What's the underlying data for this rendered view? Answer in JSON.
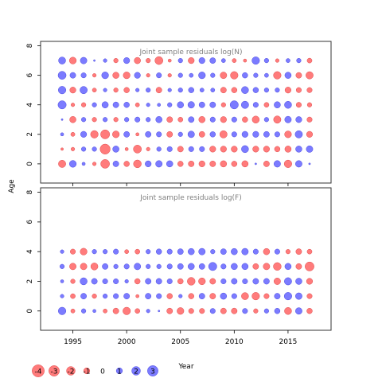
{
  "figure": {
    "ylabel": "Age",
    "xlabel": "Year",
    "colors": {
      "positive": "#6464ff",
      "negative": "#ff6464",
      "positive_stroke": "#4a4ae0",
      "negative_stroke": "#e04a4a"
    }
  },
  "legend": {
    "values": [
      -4,
      -3,
      -2,
      -1,
      0,
      1,
      2,
      3
    ],
    "labels": [
      "-4",
      "-3",
      "-2",
      "-1",
      "0",
      "1",
      "2",
      "3"
    ]
  },
  "chart_data": [
    {
      "type": "scatter",
      "encoding": "bubble",
      "title": "Joint sample residuals log(N)",
      "xlim": [
        1992,
        2019
      ],
      "ylim": [
        -1.3,
        8.3
      ],
      "xticks": [
        1995,
        2000,
        2005,
        2010,
        2015
      ],
      "xtick_labels": [
        "",
        "",
        "",
        "",
        ""
      ],
      "yticks": [
        0,
        2,
        4,
        6,
        8
      ],
      "ytick_labels": [
        "0",
        "2",
        "4",
        "6",
        "8"
      ],
      "years": [
        1994,
        1995,
        1996,
        1997,
        1998,
        1999,
        2000,
        2001,
        2002,
        2003,
        2004,
        2005,
        2006,
        2007,
        2008,
        2009,
        2010,
        2011,
        2012,
        2013,
        2014,
        2015,
        2016,
        2017
      ],
      "ages": [
        0,
        1,
        2,
        3,
        4,
        5,
        6,
        7
      ],
      "residuals": [
        [
          -1.6,
          1.4,
          0.3,
          -0.4,
          -2.3,
          1.0,
          -0.9,
          -1.8,
          1.1,
          1.3,
          1.2,
          -0.9,
          -1.0,
          -1.1,
          -1.0,
          -1.2,
          -0.9,
          -1.2,
          0.1,
          -1.0,
          1.3,
          -1.7,
          1.3,
          0.1
        ],
        [
          -0.2,
          -0.4,
          0.6,
          0.6,
          -3.0,
          1.2,
          -0.3,
          -1.9,
          -0.4,
          0.6,
          0.8,
          -1.0,
          0.8,
          0.8,
          -1.1,
          -1.1,
          -1.1,
          1.5,
          -1.1,
          -1.1,
          -0.9,
          -1.2,
          1.2,
          1.3
        ],
        [
          0.3,
          -0.5,
          1.1,
          -1.7,
          -2.4,
          -1.4,
          1.0,
          -0.3,
          1.0,
          0.8,
          -1.0,
          0.6,
          1.3,
          -1.0,
          0.9,
          -1.6,
          0.8,
          1.1,
          1.1,
          1.0,
          0.8,
          -1.4,
          1.6,
          -1.1
        ],
        [
          0.1,
          -1.2,
          0.6,
          -0.6,
          0.6,
          -0.6,
          0.6,
          0.8,
          0.6,
          1.2,
          -1.0,
          -0.7,
          1.0,
          -1.2,
          0.8,
          -1.1,
          0.8,
          -0.9,
          -1.5,
          0.6,
          -1.6,
          1.3,
          1.1,
          -0.8
        ],
        [
          2.0,
          -0.4,
          -0.6,
          0.6,
          1.2,
          1.0,
          0.9,
          -0.5,
          0.4,
          0.3,
          0.6,
          1.2,
          1.3,
          1.0,
          1.0,
          -0.6,
          2.0,
          1.6,
          0.8,
          -0.7,
          1.2,
          1.5,
          -0.8,
          -0.6
        ],
        [
          1.7,
          -1.1,
          1.6,
          -0.5,
          0.4,
          -0.6,
          -0.9,
          0.4,
          0.6,
          -1.0,
          0.4,
          0.6,
          0.9,
          0.5,
          0.5,
          -1.0,
          -0.9,
          1.5,
          0.9,
          0.6,
          0.6,
          -1.1,
          -0.8,
          -0.8
        ],
        [
          1.9,
          1.0,
          0.8,
          -0.4,
          1.4,
          -1.2,
          -1.4,
          1.1,
          -0.4,
          0.8,
          -0.4,
          0.6,
          0.5,
          1.4,
          0.6,
          -1.3,
          -1.7,
          0.9,
          0.6,
          0.5,
          -1.7,
          1.2,
          -1.0,
          -1.6
        ],
        [
          1.5,
          -1.4,
          1.3,
          0.1,
          0.4,
          -0.6,
          1.1,
          -1.2,
          -0.6,
          -1.9,
          -0.3,
          0.6,
          -1.1,
          1.1,
          1.0,
          0.5,
          -0.5,
          -0.3,
          1.7,
          0.6,
          -0.4,
          0.5,
          0.6,
          -0.7
        ]
      ]
    },
    {
      "type": "scatter",
      "encoding": "bubble",
      "title": "Joint sample residuals log(F)",
      "xlim": [
        1992,
        2019
      ],
      "ylim": [
        -1.3,
        8.3
      ],
      "xticks": [
        1995,
        2000,
        2005,
        2010,
        2015
      ],
      "xtick_labels": [
        "1995",
        "2000",
        "2005",
        "2010",
        "2015"
      ],
      "yticks": [
        0,
        2,
        4,
        6,
        8
      ],
      "ytick_labels": [
        "0",
        "2",
        "4",
        "6",
        "8"
      ],
      "years": [
        1994,
        1995,
        1996,
        1997,
        1998,
        1999,
        2000,
        2001,
        2002,
        2003,
        2004,
        2005,
        2006,
        2007,
        2008,
        2009,
        2010,
        2011,
        2012,
        2013,
        2014,
        2015,
        2016,
        2017
      ],
      "ages": [
        0,
        1,
        2,
        3,
        4
      ],
      "residuals": [
        [
          1.7,
          -0.5,
          0.6,
          0.3,
          -0.5,
          -1.0,
          -1.7,
          -0.7,
          0.4,
          0.1,
          -1.0,
          -1.4,
          -0.8,
          -0.8,
          0.8,
          -1.0,
          -1.0,
          0.8,
          -0.6,
          0.6,
          0.9,
          -1.5,
          1.3,
          -0.9
        ],
        [
          0.4,
          -0.7,
          1.0,
          -0.6,
          0.6,
          0.8,
          1.0,
          -0.3,
          1.0,
          0.8,
          -0.9,
          0.4,
          -0.9,
          1.0,
          -1.0,
          1.2,
          0.8,
          -1.5,
          -1.7,
          -0.8,
          1.0,
          1.7,
          1.3,
          -0.8
        ],
        [
          0.3,
          -0.6,
          1.5,
          1.0,
          0.8,
          0.8,
          0.4,
          -0.9,
          1.0,
          1.0,
          0.8,
          -0.9,
          -1.8,
          -1.4,
          -1.0,
          0.8,
          1.0,
          0.8,
          1.0,
          1.0,
          -1.3,
          1.6,
          1.2,
          -1.1
        ],
        [
          0.6,
          -1.3,
          -1.3,
          -1.5,
          1.0,
          0.6,
          0.8,
          1.3,
          0.6,
          0.6,
          0.8,
          1.0,
          1.2,
          1.0,
          2.0,
          0.8,
          1.2,
          1.2,
          -1.0,
          -1.3,
          -1.8,
          1.2,
          -1.0,
          -2.4
        ],
        [
          0.4,
          -0.8,
          -1.4,
          0.6,
          0.6,
          0.8,
          -0.5,
          -0.7,
          0.6,
          0.9,
          0.8,
          1.0,
          1.2,
          1.3,
          0.6,
          1.0,
          1.2,
          1.3,
          0.8,
          -1.2,
          0.8,
          -0.6,
          -1.0,
          -0.7
        ]
      ]
    }
  ]
}
